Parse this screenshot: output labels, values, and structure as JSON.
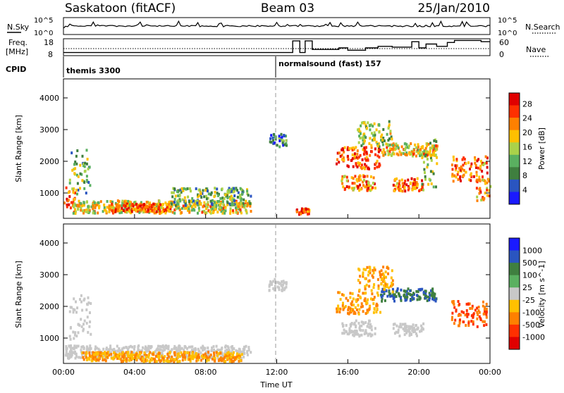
{
  "header": {
    "station": "Saskatoon (fitACF)",
    "beam": "Beam 03",
    "date": "25/Jan/2010"
  },
  "noise_panel": {
    "left_label": "N.Sky",
    "right_label": "N.Search",
    "left_ticks": [
      "10^5",
      "10^0"
    ],
    "right_ticks": [
      "10^5",
      "10^0"
    ]
  },
  "freq_panel": {
    "left_label_1": "Freq.",
    "left_label_2": "[MHz]",
    "right_label": "Nave",
    "left_ticks": [
      "18",
      "8"
    ],
    "right_ticks": [
      "60",
      "0"
    ],
    "nave_steps": [
      [
        0,
        0.2
      ],
      [
        12,
        0.2
      ],
      [
        12.9,
        0.95
      ],
      [
        13.3,
        0.2
      ],
      [
        13.6,
        0.95
      ],
      [
        14.0,
        0.4
      ],
      [
        15.5,
        0.5
      ],
      [
        16.0,
        0.35
      ],
      [
        17.0,
        0.5
      ],
      [
        17.7,
        0.6
      ],
      [
        18.5,
        0.55
      ],
      [
        19.6,
        0.9
      ],
      [
        20.0,
        0.5
      ],
      [
        20.4,
        0.75
      ],
      [
        21.0,
        0.6
      ],
      [
        21.6,
        0.85
      ],
      [
        22.0,
        0.98
      ],
      [
        23.5,
        0.9
      ],
      [
        24,
        0.9
      ]
    ]
  },
  "cpid": {
    "label": "CPID",
    "programs": [
      {
        "name": "themis 3300",
        "start_hour": 0
      },
      {
        "name": "normalsound (fast) 157",
        "start_hour": 12
      }
    ]
  },
  "colors": {
    "power_scale": [
      "#1a1aff",
      "#2a55c0",
      "#3f7f3f",
      "#5ab060",
      "#aad24a",
      "#ffc000",
      "#ff8000",
      "#ff3000",
      "#e00000"
    ],
    "velocity_scale": [
      "#e00000",
      "#ff3000",
      "#ff8000",
      "#ffc000",
      "#c8c8c8",
      "#5ab060",
      "#3f7f3f",
      "#2a55c0",
      "#1a1aff"
    ],
    "ground_scatter": "#c8c8c8"
  },
  "chart_data": [
    {
      "type": "heatmap",
      "ylabel": "Slant Range [km]",
      "yticks": [
        "1000",
        "2000",
        "3000",
        "4000"
      ],
      "ylim": [
        200,
        4600
      ],
      "colorbar_label": "Power [dB]",
      "colorbar_ticks": [
        "4",
        "8",
        "12",
        "16",
        "20",
        "24",
        "28"
      ],
      "colorbar_range": [
        0,
        31
      ],
      "regions": [
        {
          "t0": 0.0,
          "t1": 0.6,
          "r0": 500,
          "r1": 1300,
          "v": 24
        },
        {
          "t0": 0.3,
          "t1": 1.5,
          "r0": 1000,
          "r1": 2400,
          "v": 12
        },
        {
          "t0": 0.5,
          "t1": 10.5,
          "r0": 400,
          "r1": 800,
          "v": 18
        },
        {
          "t0": 2.5,
          "t1": 6.0,
          "r0": 450,
          "r1": 700,
          "v": 24
        },
        {
          "t0": 6.0,
          "t1": 10.5,
          "r0": 650,
          "r1": 1200,
          "v": 12
        },
        {
          "t0": 11.5,
          "t1": 12.5,
          "r0": 2500,
          "r1": 2900,
          "v": 8
        },
        {
          "t0": 13.0,
          "t1": 13.8,
          "r0": 350,
          "r1": 550,
          "v": 26
        },
        {
          "t0": 15.3,
          "t1": 17.8,
          "r0": 1800,
          "r1": 2500,
          "v": 26
        },
        {
          "t0": 15.6,
          "t1": 17.5,
          "r0": 1100,
          "r1": 1600,
          "v": 22
        },
        {
          "t0": 16.5,
          "t1": 18.5,
          "r0": 2500,
          "r1": 3300,
          "v": 14
        },
        {
          "t0": 17.8,
          "t1": 21.0,
          "r0": 2200,
          "r1": 2600,
          "v": 18
        },
        {
          "t0": 18.5,
          "t1": 20.2,
          "r0": 1100,
          "r1": 1500,
          "v": 24
        },
        {
          "t0": 20.0,
          "t1": 21.0,
          "r0": 1200,
          "r1": 2800,
          "v": 14
        },
        {
          "t0": 21.8,
          "t1": 23.8,
          "r0": 1400,
          "r1": 2200,
          "v": 24
        },
        {
          "t0": 23.2,
          "t1": 24.0,
          "r0": 800,
          "r1": 1600,
          "v": 22
        }
      ]
    },
    {
      "type": "heatmap",
      "ylabel": "Slant Range [km]",
      "yticks": [
        "1000",
        "2000",
        "3000",
        "4000"
      ],
      "ylim": [
        200,
        4600
      ],
      "xlabel": "Time UT",
      "xticks": [
        "00:00",
        "04:00",
        "08:00",
        "12:00",
        "16:00",
        "20:00",
        "00:00"
      ],
      "xlim_hours": [
        0,
        24
      ],
      "colorbar_label": "Velocity [m s^-1]",
      "colorbar_ticks": [
        "1000",
        "500",
        "100",
        "25",
        "-25",
        "-100",
        "-500",
        "-1000"
      ],
      "regions": [
        {
          "t0": 0.0,
          "t1": 10.5,
          "r0": 400,
          "r1": 800,
          "v": 25,
          "gs": true
        },
        {
          "t0": 0.3,
          "t1": 1.5,
          "r0": 1000,
          "r1": 2400,
          "v": 25,
          "gs": true
        },
        {
          "t0": 1.0,
          "t1": 10.0,
          "r0": 300,
          "r1": 600,
          "v": -100
        },
        {
          "t0": 11.5,
          "t1": 12.5,
          "r0": 2500,
          "r1": 2900,
          "v": 25,
          "gs": true
        },
        {
          "t0": 15.3,
          "t1": 17.8,
          "r0": 1800,
          "r1": 2500,
          "v": -100
        },
        {
          "t0": 15.6,
          "t1": 17.5,
          "r0": 1100,
          "r1": 1600,
          "v": 25,
          "gs": true
        },
        {
          "t0": 17.8,
          "t1": 21.0,
          "r0": 2200,
          "r1": 2600,
          "v": 500
        },
        {
          "t0": 18.5,
          "t1": 20.2,
          "r0": 1100,
          "r1": 1500,
          "v": 25,
          "gs": true
        },
        {
          "t0": 16.5,
          "t1": 18.5,
          "r0": 2500,
          "r1": 3300,
          "v": -100
        },
        {
          "t0": 21.8,
          "t1": 23.8,
          "r0": 1400,
          "r1": 2200,
          "v": -500
        }
      ]
    }
  ]
}
